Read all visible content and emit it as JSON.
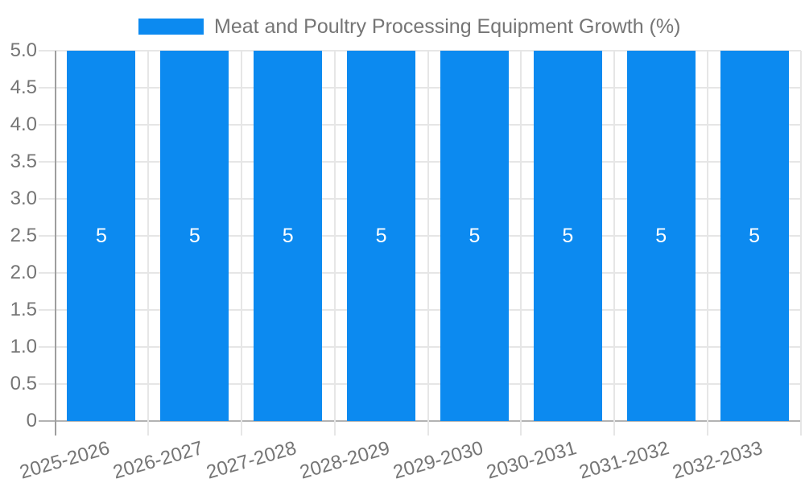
{
  "chart_data": {
    "type": "bar",
    "title": "Meat and Poultry Processing Equipment Growth (%)",
    "legend": {
      "label": "Meat and Poultry Processing Equipment Growth (%)",
      "position": "top-center"
    },
    "categories": [
      "2025-2026",
      "2026-2027",
      "2027-2028",
      "2028-2029",
      "2029-2030",
      "2030-2031",
      "2031-2032",
      "2032-2033"
    ],
    "series": [
      {
        "name": "Meat and Poultry Processing Equipment Growth (%)",
        "values": [
          5,
          5,
          5,
          5,
          5,
          5,
          5,
          5
        ]
      }
    ],
    "bar_value_labels": [
      "5",
      "5",
      "5",
      "5",
      "5",
      "5",
      "5",
      "5"
    ],
    "xlabel": "",
    "ylabel": "",
    "ylim": [
      0,
      5
    ],
    "y_ticks": [
      "5.0",
      "4.5",
      "4.0",
      "3.5",
      "3.0",
      "2.5",
      "2.0",
      "1.5",
      "1.0",
      "0.5",
      "0"
    ],
    "grid": true
  },
  "colors": {
    "bar": "#0c8af0",
    "value_label": "#ffffff",
    "gridline": "#e6e6e6",
    "baseline": "#b3b3b3",
    "axis_line": "#9e9e9e",
    "text": "#757575",
    "background": "#ffffff"
  }
}
